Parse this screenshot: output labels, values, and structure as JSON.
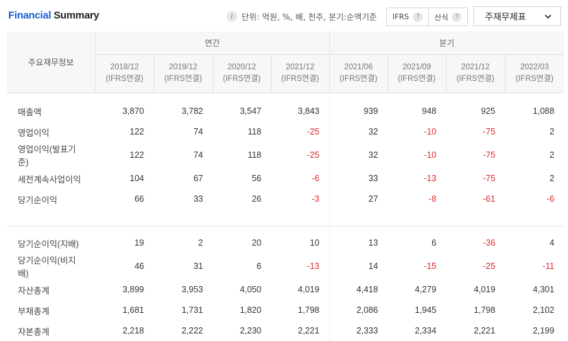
{
  "header": {
    "title_part1": "Financial",
    "title_part2": "Summary",
    "info_icon": "info-icon",
    "unit_text": "단위: 억원, %, 배, 천주, 분기:순액기준",
    "toggle_ifrs": "IFRS",
    "toggle_calc": "산식",
    "help_icon": "?",
    "dropdown_value": "주재무제표"
  },
  "table": {
    "row_header": "주요재무정보",
    "group_annual": "연간",
    "group_quarter": "분기",
    "periods": [
      {
        "date": "2018/12",
        "basis": "(IFRS연결)"
      },
      {
        "date": "2019/12",
        "basis": "(IFRS연결)"
      },
      {
        "date": "2020/12",
        "basis": "(IFRS연결)"
      },
      {
        "date": "2021/12",
        "basis": "(IFRS연결)"
      },
      {
        "date": "2021/06",
        "basis": "(IFRS연결)"
      },
      {
        "date": "2021/09",
        "basis": "(IFRS연결)"
      },
      {
        "date": "2021/12",
        "basis": "(IFRS연결)"
      },
      {
        "date": "2022/03",
        "basis": "(IFRS연결)"
      }
    ],
    "rows_group1": [
      {
        "label": "매출액",
        "values": [
          "3,870",
          "3,782",
          "3,547",
          "3,843",
          "939",
          "948",
          "925",
          "1,088"
        ]
      },
      {
        "label": "영업이익",
        "values": [
          "122",
          "74",
          "118",
          "-25",
          "32",
          "-10",
          "-75",
          "2"
        ]
      },
      {
        "label": "영업이익(발표기준)",
        "values": [
          "122",
          "74",
          "118",
          "-25",
          "32",
          "-10",
          "-75",
          "2"
        ]
      },
      {
        "label": "세전계속사업이익",
        "values": [
          "104",
          "67",
          "56",
          "-6",
          "33",
          "-13",
          "-75",
          "2"
        ]
      },
      {
        "label": "당기순이익",
        "values": [
          "66",
          "33",
          "26",
          "-3",
          "27",
          "-8",
          "-61",
          "-6"
        ]
      }
    ],
    "rows_group2": [
      {
        "label": "당기순이익(지배)",
        "values": [
          "19",
          "2",
          "20",
          "10",
          "13",
          "6",
          "-36",
          "4"
        ]
      },
      {
        "label": "당기순이익(비지배)",
        "values": [
          "46",
          "31",
          "6",
          "-13",
          "14",
          "-15",
          "-25",
          "-11"
        ]
      },
      {
        "label": "자산총계",
        "values": [
          "3,899",
          "3,953",
          "4,050",
          "4,019",
          "4,418",
          "4,279",
          "4,019",
          "4,301"
        ]
      },
      {
        "label": "부채총계",
        "values": [
          "1,681",
          "1,731",
          "1,820",
          "1,798",
          "2,086",
          "1,945",
          "1,798",
          "2,102"
        ]
      },
      {
        "label": "자본총계",
        "values": [
          "2,218",
          "2,222",
          "2,230",
          "2,221",
          "2,333",
          "2,334",
          "2,221",
          "2,199"
        ]
      }
    ]
  },
  "colors": {
    "accent": "#1a5fd6",
    "negative": "#e0262d"
  }
}
